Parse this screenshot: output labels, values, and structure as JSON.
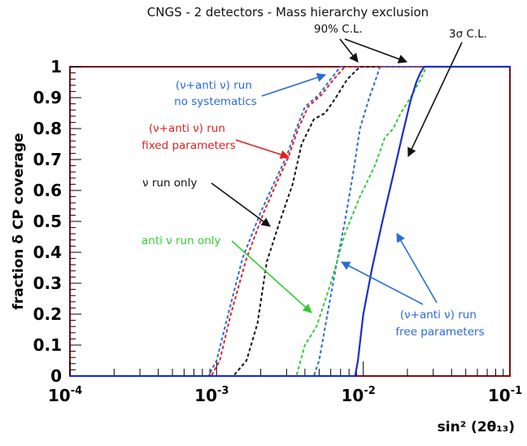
{
  "chart_data": {
    "type": "line",
    "title": "CNGS - 2 detectors - Mass hierarchy exclusion",
    "xlabel": "sin² (2θ₁₃)",
    "ylabel": "fraction δ CP coverage",
    "x_scale": "log",
    "xlim": [
      0.0001,
      0.1
    ],
    "ylim": [
      0,
      1
    ],
    "x_ticks": [
      {
        "value": 0.0001,
        "base": "10",
        "exp": "-4"
      },
      {
        "value": 0.001,
        "base": "10",
        "exp": "-3"
      },
      {
        "value": 0.01,
        "base": "10",
        "exp": "-2"
      },
      {
        "value": 0.1,
        "base": "10",
        "exp": "-1"
      }
    ],
    "y_ticks": [
      "0",
      "0.1",
      "0.2",
      "0.3",
      "0.4",
      "0.5",
      "0.6",
      "0.7",
      "0.8",
      "0.9",
      "1"
    ],
    "legend": "none",
    "grid": false,
    "series": [
      {
        "color": "#2a6bd6",
        "dash": true,
        "x": [
          0.0001,
          0.00088,
          0.001,
          0.0012,
          0.0015,
          0.002,
          0.0025,
          0.003,
          0.0035,
          0.004,
          0.005,
          0.006,
          0.007,
          0.1
        ],
        "y": [
          0,
          0,
          0.05,
          0.2,
          0.38,
          0.53,
          0.63,
          0.71,
          0.8,
          0.87,
          0.91,
          0.96,
          1.0,
          1.0
        ]
      },
      {
        "color": "#e02020",
        "dash": true,
        "x": [
          0.0001,
          0.00092,
          0.00105,
          0.00125,
          0.0016,
          0.0021,
          0.0026,
          0.0031,
          0.0036,
          0.0042,
          0.0052,
          0.0063,
          0.0075,
          0.1
        ],
        "y": [
          0,
          0,
          0.05,
          0.2,
          0.38,
          0.53,
          0.63,
          0.71,
          0.8,
          0.87,
          0.91,
          0.96,
          1.0,
          1.0
        ]
      },
      {
        "color": "#111111",
        "dash": true,
        "x": [
          0.0001,
          0.0013,
          0.0016,
          0.0019,
          0.0022,
          0.0027,
          0.0033,
          0.0038,
          0.0046,
          0.0055,
          0.0065,
          0.0078,
          0.0095,
          0.1
        ],
        "y": [
          0,
          0,
          0.05,
          0.17,
          0.37,
          0.5,
          0.62,
          0.75,
          0.83,
          0.85,
          0.9,
          0.96,
          1.0,
          1.0
        ]
      },
      {
        "color": "#2a6bd6",
        "dash": true,
        "x": [
          0.0001,
          0.0046,
          0.005,
          0.0057,
          0.0065,
          0.0075,
          0.0085,
          0.0095,
          0.011,
          0.012,
          0.013,
          0.1
        ],
        "y": [
          0,
          0,
          0.05,
          0.2,
          0.35,
          0.5,
          0.65,
          0.8,
          0.9,
          0.95,
          1.0,
          1.0
        ]
      },
      {
        "color": "#33cc33",
        "dash": true,
        "x": [
          0.0001,
          0.0035,
          0.004,
          0.0048,
          0.006,
          0.0075,
          0.0095,
          0.012,
          0.014,
          0.016,
          0.018,
          0.021,
          0.024,
          0.027,
          0.1
        ],
        "y": [
          0,
          0,
          0.1,
          0.16,
          0.3,
          0.46,
          0.58,
          0.68,
          0.77,
          0.8,
          0.85,
          0.9,
          0.95,
          1.0,
          1.0
        ]
      },
      {
        "color": "#1a2fc8",
        "dash": false,
        "x": [
          0.0001,
          0.0088,
          0.0092,
          0.01,
          0.0115,
          0.0135,
          0.016,
          0.0185,
          0.021,
          0.023,
          0.0245,
          0.026,
          0.1
        ],
        "y": [
          0,
          0,
          0.05,
          0.2,
          0.35,
          0.5,
          0.65,
          0.78,
          0.89,
          0.95,
          0.98,
          1.0,
          1.0
        ]
      }
    ],
    "annotations": [
      {
        "lines": [
          "90% C.L."
        ],
        "color": "#111111"
      },
      {
        "lines": [
          "3σ C.L."
        ],
        "color": "#111111"
      },
      {
        "lines": [
          "(ν+anti ν) run",
          "no systematics"
        ],
        "color": "#2a6bd6"
      },
      {
        "lines": [
          "(ν+anti ν) run",
          "fixed parameters"
        ],
        "color": "#e02020"
      },
      {
        "lines": [
          "ν run only"
        ],
        "color": "#111111"
      },
      {
        "lines": [
          "anti ν run only"
        ],
        "color": "#33cc33"
      },
      {
        "lines": [
          "(ν+anti ν) run",
          "free parameters"
        ],
        "color": "#2a6bd6"
      }
    ]
  }
}
